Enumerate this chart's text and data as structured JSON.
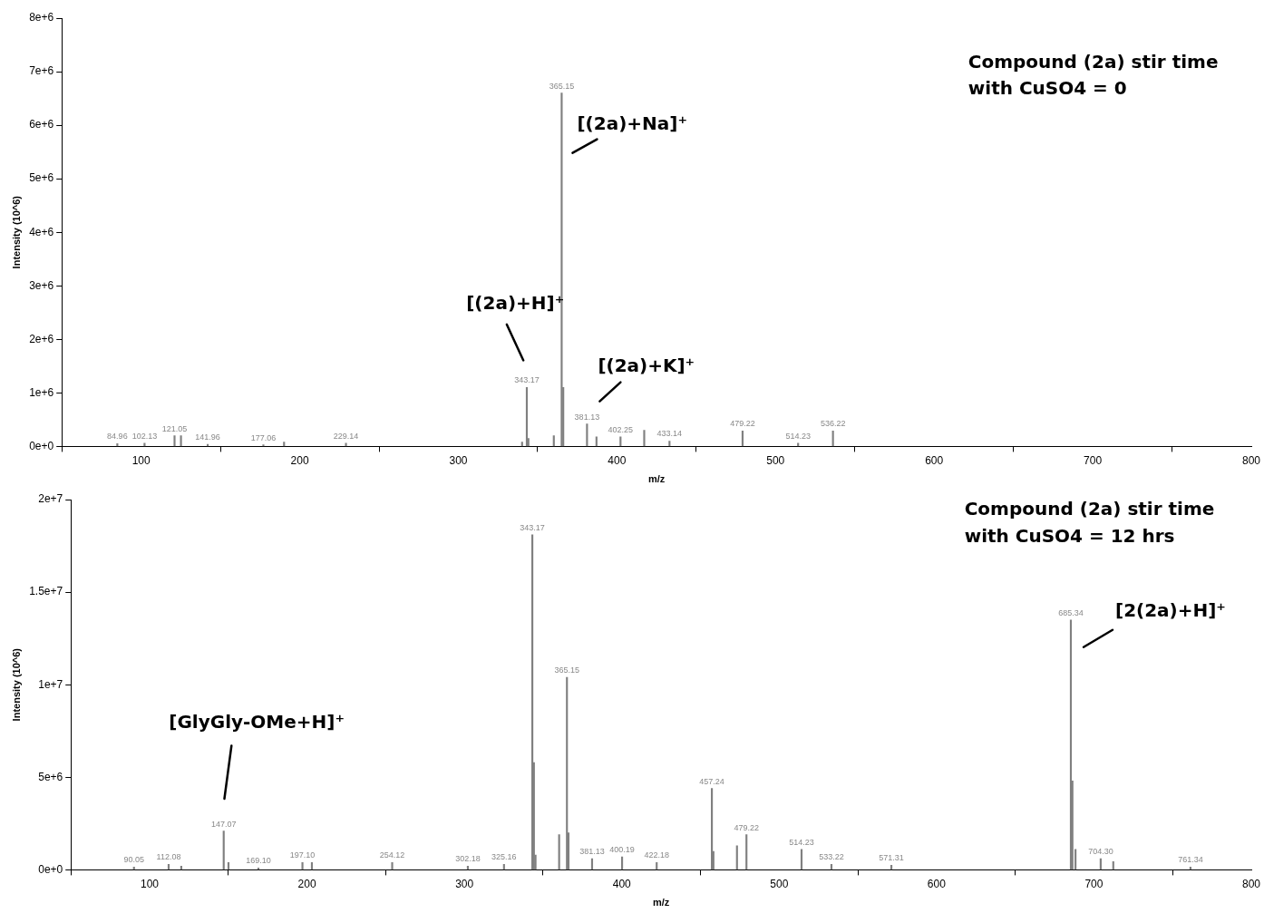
{
  "chart_data": [
    {
      "type": "bar",
      "xlabel": "m/z",
      "ylabel": "Intensity (10^6)",
      "xlim": [
        50,
        800
      ],
      "xticks": [
        100,
        200,
        300,
        400,
        500,
        600,
        700,
        800
      ],
      "ylim": [
        0,
        8000000
      ],
      "yticks": [
        {
          "value": 0,
          "label": "0e+0"
        },
        {
          "value": 1000000,
          "label": "1e+6"
        },
        {
          "value": 2000000,
          "label": "2e+6"
        },
        {
          "value": 3000000,
          "label": "3e+6"
        },
        {
          "value": 4000000,
          "label": "4e+6"
        },
        {
          "value": 5000000,
          "label": "5e+6"
        },
        {
          "value": 6000000,
          "label": "6e+6"
        },
        {
          "value": 7000000,
          "label": "7e+6"
        },
        {
          "value": 8000000,
          "label": "8e+6"
        }
      ],
      "x": [
        84.96,
        102.13,
        121.05,
        125.1,
        141.96,
        177.06,
        190.1,
        229.14,
        340.2,
        343.17,
        344.17,
        360.2,
        365.15,
        366.15,
        381.13,
        387.1,
        402.25,
        417.2,
        433.14,
        479.22,
        514.23,
        536.22
      ],
      "values": [
        50000,
        60000,
        200000,
        200000,
        40000,
        30000,
        80000,
        60000,
        80000,
        1100000,
        150000,
        200000,
        6600000,
        1100000,
        420000,
        180000,
        180000,
        300000,
        100000,
        290000,
        60000,
        290000
      ],
      "color": "#808080",
      "grid": false,
      "annotations": [
        "Compound (2a) stir time",
        "with CuSO4 = 0",
        "[(2a)+H]⁺",
        {
          "text": "[(2a)+Na]⁺",
          "x": 365.15,
          "y": 6600000
        },
        {
          "text": "[(2a)+K]⁺",
          "x": 381.13,
          "y": 420000
        },
        {
          "text": "84.96",
          "x": 84.96,
          "y": 50000
        },
        {
          "text": "102.13",
          "x": 102.13,
          "y": 60000
        },
        {
          "text": "121.05",
          "x": 121.05,
          "y": 200000
        },
        {
          "text": "141.96",
          "x": 141.96,
          "y": 40000
        },
        {
          "text": "177.06",
          "x": 177.06,
          "y": 30000
        },
        {
          "text": "229.14",
          "x": 229.14,
          "y": 60000
        },
        {
          "text": "343.17",
          "x": 343.17,
          "y": 1100000
        },
        {
          "text": "365.15",
          "x": 365.15,
          "y": 6600000
        },
        {
          "text": "381.13",
          "x": 381.13,
          "y": 420000
        },
        {
          "text": "402.25",
          "x": 402.25,
          "y": 180000
        },
        {
          "text": "433.14",
          "x": 433.14,
          "y": 100000
        },
        {
          "text": "479.22",
          "x": 479.22,
          "y": 290000
        },
        {
          "text": "514.23",
          "x": 514.23,
          "y": 60000
        },
        {
          "text": "536.22",
          "x": 536.22,
          "y": 290000
        }
      ]
    },
    {
      "type": "bar",
      "xlabel": "m/z",
      "ylabel": "Intensity (10^6)",
      "xlim": [
        50,
        800
      ],
      "xticks": [
        100,
        200,
        300,
        400,
        500,
        600,
        700,
        800
      ],
      "ylim": [
        0,
        20000000
      ],
      "yticks": [
        {
          "value": 0,
          "label": "0e+0"
        },
        {
          "value": 5000000,
          "label": "5e+6"
        },
        {
          "value": 10000000,
          "label": "1e+7"
        },
        {
          "value": 15000000,
          "label": "1.5e+7"
        },
        {
          "value": 20000000,
          "label": "2e+7"
        }
      ],
      "x": [
        90.05,
        112.08,
        120.1,
        147.07,
        150.1,
        169.1,
        197.1,
        203.1,
        254.12,
        302.18,
        325.16,
        343.17,
        344.17,
        345.2,
        360.2,
        365.15,
        366.15,
        381.13,
        400.19,
        422.18,
        457.24,
        458.24,
        473.2,
        479.22,
        514.23,
        533.22,
        571.31,
        685.34,
        686.34,
        688.3,
        704.3,
        712.3,
        761.34
      ],
      "values": [
        150000,
        300000,
        200000,
        2100000,
        400000,
        100000,
        400000,
        400000,
        400000,
        200000,
        300000,
        18100000,
        5800000,
        800000,
        1900000,
        10400000,
        2000000,
        600000,
        700000,
        400000,
        4400000,
        1000000,
        1300000,
        1900000,
        1100000,
        300000,
        250000,
        13500000,
        4800000,
        1100000,
        600000,
        450000,
        150000
      ],
      "color": "#808080",
      "grid": false,
      "annotations": [
        "Compound (2a) stir time",
        "with CuSO4 = 12 hrs",
        "[GlyGly-OMe+H]⁺",
        {
          "text": "[2(2a)+H]⁺",
          "x": 685.34,
          "y": 13500000
        },
        {
          "text": "90.05",
          "x": 90.05,
          "y": 150000
        },
        {
          "text": "112.08",
          "x": 112.08,
          "y": 300000
        },
        {
          "text": "147.07",
          "x": 147.07,
          "y": 2100000
        },
        {
          "text": "169.10",
          "x": 169.1,
          "y": 100000
        },
        {
          "text": "197.10",
          "x": 197.1,
          "y": 400000
        },
        {
          "text": "254.12",
          "x": 254.12,
          "y": 400000
        },
        {
          "text": "302.18",
          "x": 302.18,
          "y": 200000
        },
        {
          "text": "325.16",
          "x": 325.16,
          "y": 300000
        },
        {
          "text": "343.17",
          "x": 343.17,
          "y": 18100000
        },
        {
          "text": "365.15",
          "x": 365.15,
          "y": 10400000
        },
        {
          "text": "381.13",
          "x": 381.13,
          "y": 600000
        },
        {
          "text": "400.19",
          "x": 400.19,
          "y": 700000
        },
        {
          "text": "422.18",
          "x": 422.18,
          "y": 400000
        },
        {
          "text": "457.24",
          "x": 457.24,
          "y": 4400000
        },
        {
          "text": "479.22",
          "x": 479.22,
          "y": 1900000
        },
        {
          "text": "514.23",
          "x": 514.23,
          "y": 1100000
        },
        {
          "text": "533.22",
          "x": 533.22,
          "y": 300000
        },
        {
          "text": "571.31",
          "x": 571.31,
          "y": 250000
        },
        {
          "text": "685.34",
          "x": 685.34,
          "y": 13500000
        },
        {
          "text": "704.30",
          "x": 704.3,
          "y": 600000
        },
        {
          "text": "761.34",
          "x": 761.34,
          "y": 150000
        }
      ]
    }
  ]
}
